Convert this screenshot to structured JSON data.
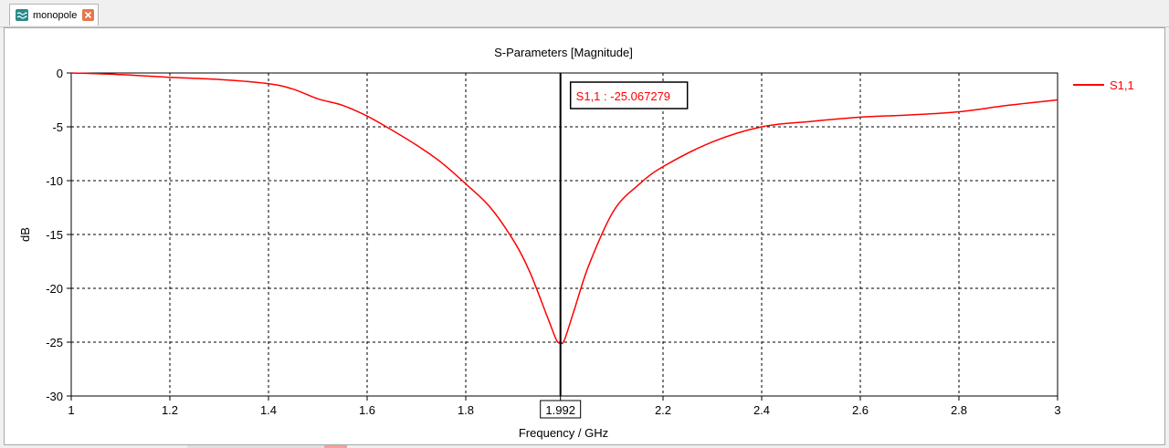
{
  "tab": {
    "label": "monopole",
    "icon": "s-parameter-icon",
    "close_icon": "close-icon"
  },
  "chart_data": {
    "type": "line",
    "title": "S-Parameters [Magnitude]",
    "xlabel": "Frequency / GHz",
    "ylabel": "dB",
    "xlim": [
      1,
      3
    ],
    "ylim": [
      -30,
      0
    ],
    "x_ticks": [
      "1",
      "1.2",
      "1.4",
      "1.6",
      "1.8",
      "1.992",
      "2.2",
      "2.4",
      "2.6",
      "2.8",
      "3"
    ],
    "y_ticks": [
      "0",
      "-5",
      "-10",
      "-15",
      "-20",
      "-25",
      "-30"
    ],
    "grid": true,
    "legend_position": "right",
    "series": [
      {
        "name": "S1,1",
        "color": "#ff0000",
        "x": [
          1.0,
          1.1,
          1.2,
          1.3,
          1.4,
          1.45,
          1.5,
          1.55,
          1.6,
          1.65,
          1.7,
          1.75,
          1.8,
          1.85,
          1.9,
          1.93,
          1.96,
          1.975,
          1.985,
          1.992,
          2.0,
          2.02,
          2.05,
          2.1,
          2.15,
          2.2,
          2.3,
          2.4,
          2.5,
          2.6,
          2.7,
          2.8,
          2.9,
          3.0
        ],
        "values": [
          0,
          -0.15,
          -0.4,
          -0.6,
          -1.0,
          -1.5,
          -2.4,
          -3.0,
          -4.0,
          -5.3,
          -6.7,
          -8.3,
          -10.3,
          -12.5,
          -15.8,
          -18.5,
          -22.0,
          -23.8,
          -24.9,
          -25.07,
          -24.8,
          -22.0,
          -17.8,
          -12.8,
          -10.4,
          -8.7,
          -6.4,
          -5.0,
          -4.5,
          -4.1,
          -3.9,
          -3.6,
          -3.0,
          -2.5
        ]
      }
    ],
    "marker": {
      "x": 1.992,
      "x_label": "1.992",
      "label": "S1,1 : -25.067279"
    }
  }
}
